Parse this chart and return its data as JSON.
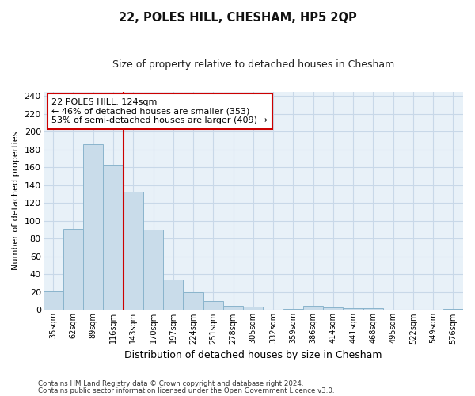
{
  "title": "22, POLES HILL, CHESHAM, HP5 2QP",
  "subtitle": "Size of property relative to detached houses in Chesham",
  "xlabel": "Distribution of detached houses by size in Chesham",
  "ylabel": "Number of detached properties",
  "categories": [
    "35sqm",
    "62sqm",
    "89sqm",
    "116sqm",
    "143sqm",
    "170sqm",
    "197sqm",
    "224sqm",
    "251sqm",
    "278sqm",
    "305sqm",
    "332sqm",
    "359sqm",
    "386sqm",
    "414sqm",
    "441sqm",
    "468sqm",
    "495sqm",
    "522sqm",
    "549sqm",
    "576sqm"
  ],
  "values": [
    21,
    91,
    186,
    163,
    133,
    90,
    34,
    20,
    10,
    5,
    4,
    0,
    1,
    5,
    3,
    2,
    2,
    0,
    0,
    0,
    1
  ],
  "bar_color": "#c9dcea",
  "bar_edge_color": "#8ab4cc",
  "vline_color": "#cc0000",
  "annotation_box_text": "22 POLES HILL: 124sqm\n← 46% of detached houses are smaller (353)\n53% of semi-detached houses are larger (409) →",
  "annotation_box_color": "#cc0000",
  "annotation_box_bg": "#ffffff",
  "grid_color": "#c8d8e8",
  "bg_color": "#e8f1f8",
  "footer_line1": "Contains HM Land Registry data © Crown copyright and database right 2024.",
  "footer_line2": "Contains public sector information licensed under the Open Government Licence v3.0.",
  "ylim": [
    0,
    245
  ],
  "yticks": [
    0,
    20,
    40,
    60,
    80,
    100,
    120,
    140,
    160,
    180,
    200,
    220,
    240
  ],
  "vline_bar_index": 3
}
